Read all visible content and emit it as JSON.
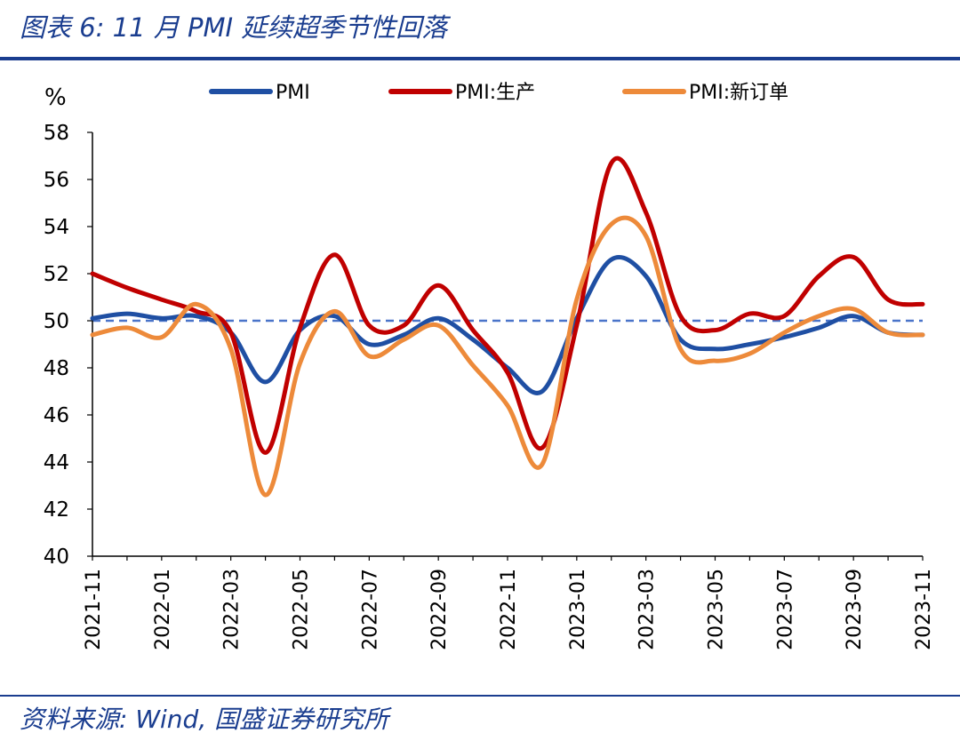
{
  "figure": {
    "title": "图表 6: 11 月 PMI 延续超季节性回落",
    "source": "资料来源: Wind, 国盛证券研究所"
  },
  "chart_data": {
    "type": "line",
    "unit": "%",
    "ylim": [
      40,
      58
    ],
    "yticks": [
      40,
      42,
      44,
      46,
      48,
      50,
      52,
      54,
      56,
      58
    ],
    "x_tick_labels": [
      "2021-11",
      "2022-01",
      "2022-03",
      "2022-05",
      "2022-07",
      "2022-09",
      "2022-11",
      "2023-01",
      "2023-03",
      "2023-05",
      "2023-07",
      "2023-09",
      "2023-11"
    ],
    "x": [
      "2021-11",
      "2021-12",
      "2022-01",
      "2022-02",
      "2022-03",
      "2022-04",
      "2022-05",
      "2022-06",
      "2022-07",
      "2022-08",
      "2022-09",
      "2022-10",
      "2022-11",
      "2022-12",
      "2023-01",
      "2023-02",
      "2023-03",
      "2023-04",
      "2023-05",
      "2023-06",
      "2023-07",
      "2023-08",
      "2023-09",
      "2023-10",
      "2023-11"
    ],
    "reference_line": {
      "y": 50,
      "color": "#4a74c9",
      "style": "dashed"
    },
    "legend_position": "top",
    "series": [
      {
        "name": "PMI",
        "color": "#1f4fa3",
        "values": [
          50.1,
          50.3,
          50.1,
          50.2,
          49.5,
          47.4,
          49.6,
          50.2,
          49.0,
          49.4,
          50.1,
          49.2,
          48.0,
          47.0,
          50.1,
          52.6,
          51.9,
          49.2,
          48.8,
          49.0,
          49.3,
          49.7,
          50.2,
          49.5,
          49.4
        ]
      },
      {
        "name": "PMI:生产",
        "color": "#c00000",
        "values": [
          52.0,
          51.4,
          50.9,
          50.4,
          49.5,
          44.4,
          49.7,
          52.8,
          49.8,
          49.8,
          51.5,
          49.6,
          47.8,
          44.6,
          49.8,
          56.7,
          54.6,
          50.2,
          49.6,
          50.3,
          50.2,
          51.9,
          52.7,
          50.9,
          50.7
        ]
      },
      {
        "name": "PMI:新订单",
        "color": "#ed8a3a",
        "values": [
          49.4,
          49.7,
          49.3,
          50.7,
          48.8,
          42.6,
          48.2,
          50.4,
          48.5,
          49.2,
          49.8,
          48.1,
          46.4,
          43.9,
          50.9,
          54.1,
          53.6,
          48.8,
          48.3,
          48.6,
          49.5,
          50.2,
          50.5,
          49.5,
          49.4
        ]
      }
    ]
  }
}
